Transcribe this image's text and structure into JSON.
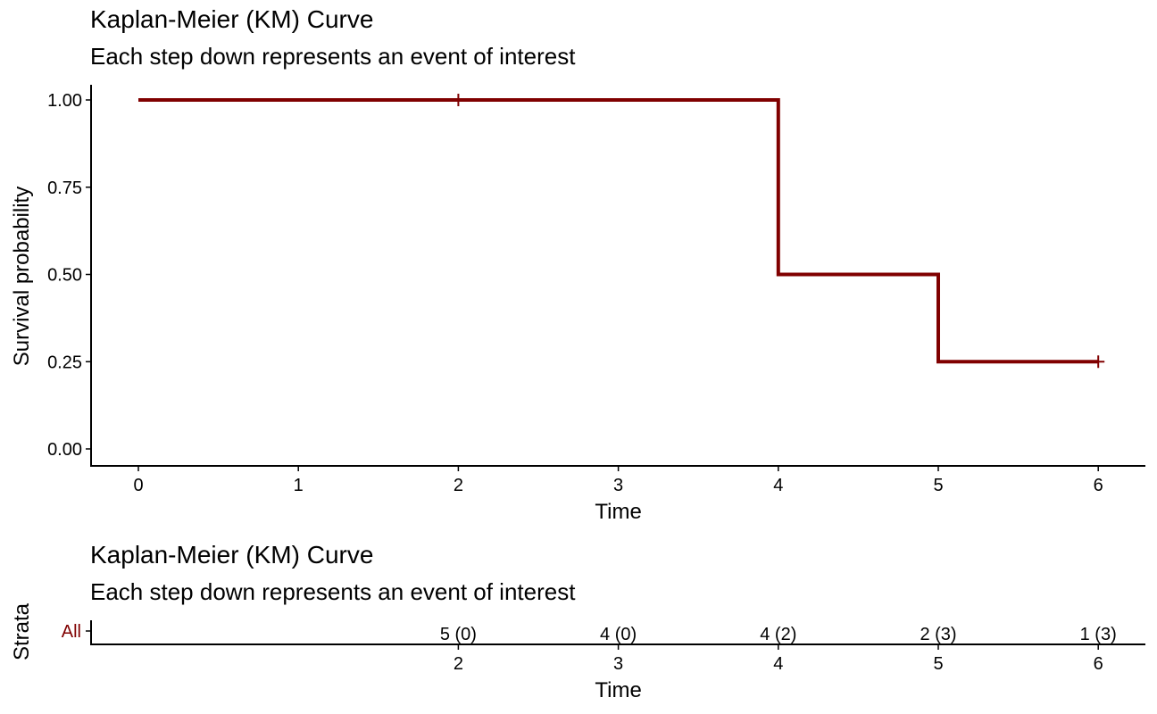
{
  "colors": {
    "curve": "#800000",
    "axis": "#000000",
    "strata_label": "#800000"
  },
  "chart_data": [
    {
      "type": "line",
      "step": true,
      "title": "Kaplan-Meier (KM) Curve",
      "subtitle": "Each step down represents an event of interest",
      "xlabel": "Time",
      "ylabel": "Survival probability",
      "xlim": [
        -0.3,
        6.3
      ],
      "ylim": [
        0,
        1.0
      ],
      "xticks": [
        0,
        1,
        2,
        3,
        4,
        5,
        6
      ],
      "yticks": [
        "0.00",
        "0.25",
        "0.50",
        "0.75",
        "1.00"
      ],
      "grid": false,
      "series": [
        {
          "x": [
            0,
            4,
            4,
            5,
            5,
            6
          ],
          "y": [
            1.0,
            1.0,
            0.5,
            0.5,
            0.25,
            0.25
          ],
          "censored": [
            {
              "x": 2,
              "y": 1.0
            },
            {
              "x": 6,
              "y": 0.25
            }
          ]
        }
      ]
    },
    {
      "type": "table",
      "title": "Kaplan-Meier (KM) Curve",
      "subtitle": "Each step down represents an event of interest",
      "xlabel": "Time",
      "ylabel": "Strata",
      "strata": [
        "All"
      ],
      "times": [
        2,
        3,
        4,
        5,
        6
      ],
      "labels": [
        "5 (0)",
        "4 (0)",
        "4 (2)",
        "2 (3)",
        "1 (3)"
      ]
    }
  ]
}
